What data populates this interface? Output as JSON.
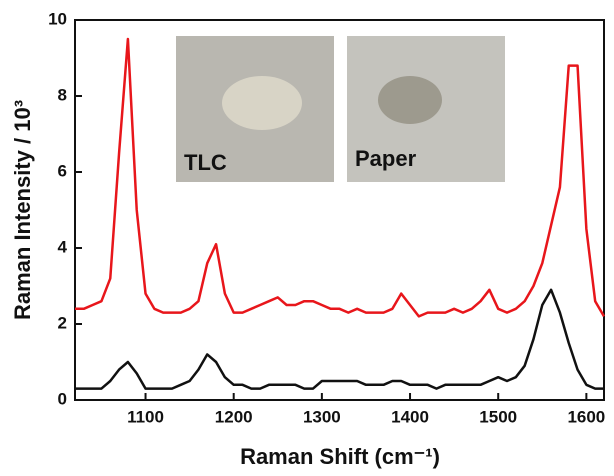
{
  "chart_data": {
    "type": "line",
    "xlabel": "Raman Shift (cm⁻¹)",
    "ylabel": "Raman Intensity / 10³",
    "annotations": [
      "TLC",
      "Paper"
    ],
    "x": [
      1020,
      1030,
      1040,
      1050,
      1060,
      1070,
      1080,
      1090,
      1100,
      1110,
      1120,
      1130,
      1140,
      1150,
      1160,
      1170,
      1180,
      1190,
      1200,
      1210,
      1220,
      1230,
      1240,
      1250,
      1260,
      1270,
      1280,
      1290,
      1300,
      1310,
      1320,
      1330,
      1340,
      1350,
      1360,
      1370,
      1380,
      1390,
      1400,
      1410,
      1420,
      1430,
      1440,
      1450,
      1460,
      1470,
      1480,
      1490,
      1500,
      1510,
      1520,
      1530,
      1540,
      1550,
      1560,
      1570,
      1580,
      1590,
      1600,
      1610,
      1620
    ],
    "series": [
      {
        "color": "#e8161b",
        "values": [
          2.4,
          2.4,
          2.5,
          2.6,
          3.2,
          6.5,
          9.5,
          5.0,
          2.8,
          2.4,
          2.3,
          2.3,
          2.3,
          2.4,
          2.6,
          3.6,
          4.1,
          2.8,
          2.3,
          2.3,
          2.4,
          2.5,
          2.6,
          2.7,
          2.5,
          2.5,
          2.6,
          2.6,
          2.5,
          2.4,
          2.4,
          2.3,
          2.4,
          2.3,
          2.3,
          2.3,
          2.4,
          2.8,
          2.5,
          2.2,
          2.3,
          2.3,
          2.3,
          2.4,
          2.3,
          2.4,
          2.6,
          2.9,
          2.4,
          2.3,
          2.4,
          2.6,
          3.0,
          3.6,
          4.6,
          5.6,
          8.8,
          8.8,
          4.5,
          2.6,
          2.2
        ]
      },
      {
        "color": "#111111",
        "values": [
          0.3,
          0.3,
          0.3,
          0.3,
          0.5,
          0.8,
          1.0,
          0.7,
          0.3,
          0.3,
          0.3,
          0.3,
          0.4,
          0.5,
          0.8,
          1.2,
          1.0,
          0.6,
          0.4,
          0.4,
          0.3,
          0.3,
          0.4,
          0.4,
          0.4,
          0.4,
          0.3,
          0.3,
          0.5,
          0.5,
          0.5,
          0.5,
          0.5,
          0.4,
          0.4,
          0.4,
          0.5,
          0.5,
          0.4,
          0.4,
          0.4,
          0.3,
          0.4,
          0.4,
          0.4,
          0.4,
          0.4,
          0.5,
          0.6,
          0.5,
          0.6,
          0.9,
          1.6,
          2.5,
          2.9,
          2.3,
          1.5,
          0.8,
          0.4,
          0.3,
          0.3
        ]
      }
    ],
    "xlim": [
      1020,
      1620
    ],
    "xticks": [
      1100,
      1200,
      1300,
      1400,
      1500,
      1600
    ],
    "ylim": [
      0,
      10
    ],
    "yticks": [
      0,
      2,
      4,
      6,
      8,
      10
    ]
  }
}
